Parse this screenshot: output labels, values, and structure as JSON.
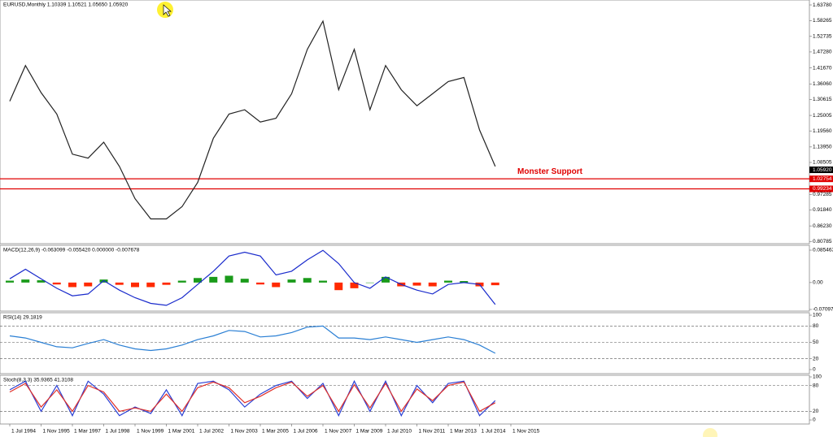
{
  "chart_data": [
    {
      "type": "line",
      "title": "EURUSD,Monthly 1.10339 1.10521 1.05650 1.05920",
      "ylim": [
        0.8,
        1.655
      ],
      "yticks": [
        {
          "value": 1.6378,
          "label": "1.63780"
        },
        1.58265,
        1.52735,
        {
          "value": 1.4728,
          "label": "1.47280"
        },
        {
          "value": 1.4167,
          "label": "1.41670"
        },
        {
          "value": 1.3606,
          "label": "1.36060"
        },
        1.30615,
        1.25005,
        {
          "value": 1.1956,
          "label": "1.19560"
        },
        {
          "value": 1.1395,
          "label": "1.13950"
        },
        1.08505,
        0.97285,
        {
          "value": 0.9184,
          "label": "0.91840"
        },
        {
          "value": 0.8623,
          "label": "0.86230"
        },
        0.80785
      ],
      "series": [
        {
          "type": "line",
          "color": "#222222",
          "values": [
            1.3,
            1.425,
            1.33,
            1.255,
            1.114,
            1.1,
            1.156,
            1.071,
            0.958,
            0.887,
            0.887,
            0.93,
            1.015,
            1.17,
            1.255,
            1.27,
            1.227,
            1.24,
            1.326,
            1.482,
            1.581,
            1.34,
            1.482,
            1.27,
            1.425,
            1.34,
            1.284,
            1.326,
            1.369,
            1.383,
            1.199,
            1.071,
            null
          ]
        }
      ],
      "levels": [
        1.02754,
        0.99234
      ],
      "level_color": "#e00000",
      "last": {
        "value": 1.0592,
        "label": "1.05920"
      },
      "annotation": "Monster Support"
    },
    {
      "type": "bar",
      "title": "MACD(12,26,9) -0.063099 -0.055420 0.000000 -0.007678",
      "ylim": [
        -0.0753,
        0.0983
      ],
      "yticks": [
        0.085463,
        {
          "value": 0,
          "label": "0.00"
        },
        -0.070973
      ],
      "series": [
        {
          "type": "bar",
          "up_color": "#1a9a1a",
          "down_color": "#ff2a00",
          "values": [
            0.005,
            0.008,
            0.006,
            -0.005,
            -0.012,
            -0.01,
            0.008,
            -0.006,
            -0.012,
            -0.012,
            -0.006,
            0.005,
            0.012,
            0.015,
            0.018,
            0.01,
            -0.005,
            -0.012,
            0.008,
            0.012,
            0.005,
            -0.02,
            -0.015,
            0.0,
            0.015,
            -0.01,
            -0.008,
            -0.01,
            0.005,
            0.004,
            -0.01,
            -0.007,
            null
          ]
        },
        {
          "type": "line",
          "color": "#1a2bcc",
          "values": [
            0.01,
            0.035,
            0.01,
            -0.015,
            -0.035,
            -0.03,
            0.005,
            -0.02,
            -0.04,
            -0.055,
            -0.06,
            -0.04,
            -0.005,
            0.03,
            0.07,
            0.08,
            0.07,
            0.02,
            0.03,
            0.06,
            0.085,
            0.05,
            0.0,
            -0.015,
            0.015,
            -0.005,
            -0.02,
            -0.03,
            -0.005,
            0.0,
            -0.005,
            -0.058,
            null
          ]
        }
      ]
    },
    {
      "type": "line",
      "title": "RSI(14) 29.1819",
      "ylim": [
        -7.5,
        104.5
      ],
      "yticks": [
        100,
        80,
        50,
        20,
        0
      ],
      "series": [
        {
          "type": "line",
          "color": "#2a7fd4",
          "values": [
            62,
            58,
            50,
            42,
            40,
            48,
            55,
            45,
            38,
            35,
            38,
            45,
            55,
            62,
            72,
            70,
            60,
            62,
            68,
            78,
            80,
            58,
            58,
            55,
            60,
            55,
            50,
            55,
            60,
            55,
            45,
            30,
            null
          ]
        }
      ],
      "levels": [
        80,
        50,
        20
      ],
      "level_color": "#555555"
    },
    {
      "type": "line",
      "title": "Stoch(8,3,3) 35.9365 41.3108",
      "ylim": [
        -9.4,
        103.8
      ],
      "yticks": [
        100,
        80,
        20,
        0
      ],
      "series": [
        {
          "type": "line",
          "color": "#2a3fd4",
          "values": [
            70,
            90,
            20,
            80,
            10,
            90,
            60,
            10,
            30,
            15,
            70,
            10,
            85,
            90,
            70,
            30,
            60,
            80,
            90,
            50,
            85,
            10,
            90,
            20,
            90,
            10,
            80,
            40,
            85,
            90,
            10,
            45,
            null
          ]
        },
        {
          "type": "line",
          "color": "#e0302a",
          "values": [
            65,
            85,
            30,
            70,
            20,
            80,
            65,
            20,
            28,
            20,
            60,
            20,
            75,
            88,
            75,
            40,
            55,
            75,
            88,
            55,
            80,
            20,
            82,
            28,
            85,
            20,
            72,
            45,
            80,
            88,
            20,
            40,
            null
          ]
        }
      ],
      "levels": [
        80,
        20
      ],
      "level_color": "#555555",
      "categories": [
        "1 Jul 1994",
        null,
        "1 Nov 1995",
        null,
        "1 Mar 1997",
        null,
        "1 Jul 1998",
        null,
        "1 Nov 1999",
        null,
        "1 Mar 2001",
        null,
        "1 Jul 2002",
        null,
        "1 Nov 2003",
        null,
        "1 Mar 2005",
        null,
        "1 Jul 2006",
        null,
        "1 Nov 2007",
        null,
        "1 Mar 2009",
        null,
        "1 Jul 2010",
        null,
        "1 Nov 2011",
        null,
        "1 Mar 2013",
        null,
        "1 Jul 2014",
        null,
        "1 Nov 2015"
      ]
    }
  ]
}
